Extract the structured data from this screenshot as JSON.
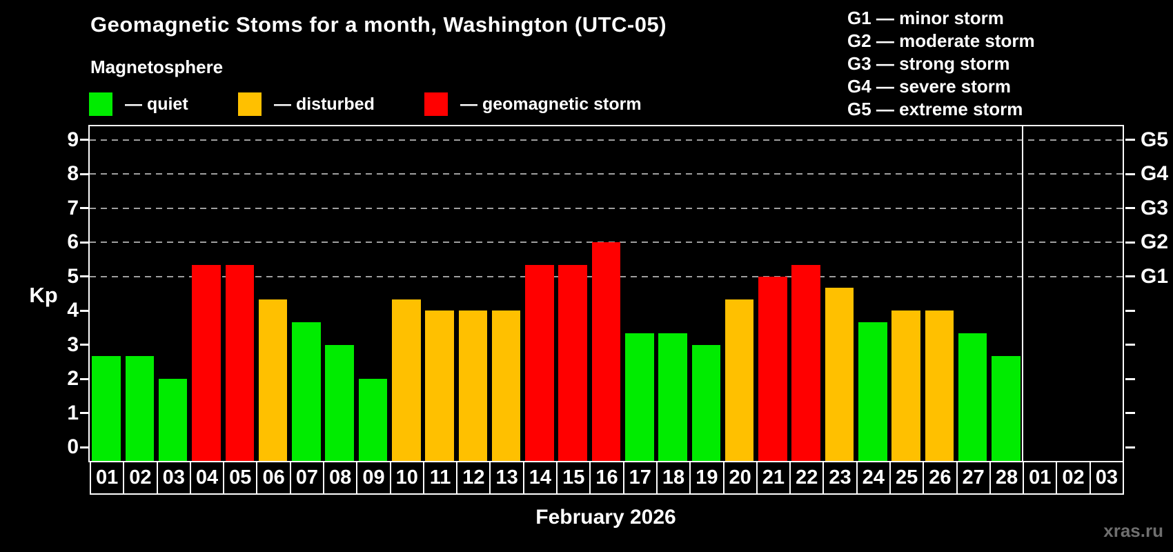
{
  "chart_data": {
    "type": "bar",
    "title": "Geomagnetic Stoms for a month, Washington (UTC-05)",
    "legend": {
      "title": "Magnetosphere",
      "items": [
        {
          "name": "quiet",
          "label": "— quiet",
          "color": "#00EC00"
        },
        {
          "name": "disturbed",
          "label": "— disturbed",
          "color": "#FFC000"
        },
        {
          "name": "storm",
          "label": "— geomagnetic storm",
          "color": "#FF0000"
        }
      ]
    },
    "g_legend": [
      "G1 — minor storm",
      "G2 — moderate storm",
      "G3 — strong storm",
      "G4 — severe storm",
      "G5 — extreme storm"
    ],
    "ylabel": "Kp",
    "xlabel": "February 2026",
    "categories": [
      "01",
      "02",
      "03",
      "04",
      "05",
      "06",
      "07",
      "08",
      "09",
      "10",
      "11",
      "12",
      "13",
      "14",
      "15",
      "16",
      "17",
      "18",
      "19",
      "20",
      "21",
      "22",
      "23",
      "24",
      "25",
      "26",
      "27",
      "28",
      "01",
      "02",
      "03"
    ],
    "values": [
      2.67,
      2.67,
      2,
      5.33,
      5.33,
      4.33,
      3.67,
      3,
      2,
      4.33,
      4,
      4,
      4,
      5.33,
      5.33,
      6,
      3.33,
      3.33,
      3,
      4.33,
      5,
      5.33,
      4.67,
      3.67,
      4,
      4,
      3.33,
      2.67,
      null,
      null,
      null
    ],
    "yticks": [
      0,
      1,
      2,
      3,
      4,
      5,
      6,
      7,
      8,
      9
    ],
    "gridlines_at": [
      5,
      6,
      7,
      8,
      9
    ],
    "right_axis_labels": [
      {
        "kp": 5,
        "label": "G1"
      },
      {
        "kp": 6,
        "label": "G2"
      },
      {
        "kp": 7,
        "label": "G3"
      },
      {
        "kp": 8,
        "label": "G4"
      },
      {
        "kp": 9,
        "label": "G5"
      }
    ],
    "ylim": [
      -0.4,
      9.4
    ],
    "separator_after_index": 27,
    "thresholds": {
      "disturbed_min": 4,
      "storm_min": 5
    },
    "colors": {
      "quiet": "#00EC00",
      "disturbed": "#FFC000",
      "storm": "#FF0000",
      "axis": "#FFFFFF",
      "grid": "#A0A0A0",
      "background": "#000000",
      "text": "#FFFFFF",
      "watermark": "#6F6F6F"
    },
    "watermark": "xras.ru"
  }
}
